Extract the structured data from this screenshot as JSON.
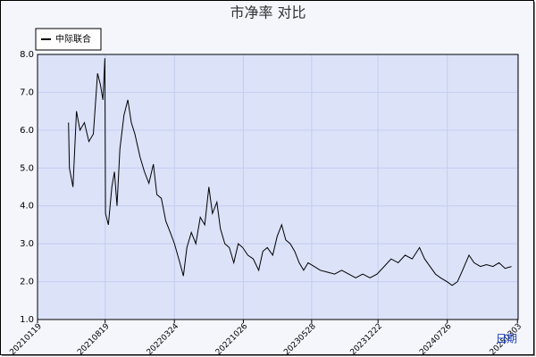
{
  "chart_data": {
    "type": "line",
    "title": "市净率  对比",
    "x_label": "日期",
    "x": [
      "20210426",
      "20210429",
      "20210510",
      "20210521",
      "20210601",
      "20210615",
      "20210629",
      "20210713",
      "20210726",
      "20210804",
      "20210812",
      "20210818",
      "20210820",
      "20210829",
      "20210909",
      "20210917",
      "20210925",
      "20211004",
      "20211017",
      "20211029",
      "20211109",
      "20211120",
      "20211206",
      "20211220",
      "20220103",
      "20220117",
      "20220128",
      "20220211",
      "20220225",
      "20220311",
      "20220324",
      "20220410",
      "20220421",
      "20220502",
      "20220516",
      "20220530",
      "20220613",
      "20220627",
      "20220710",
      "20220721",
      "20220804",
      "20220815",
      "20220829",
      "20220912",
      "20220926",
      "20221010",
      "20221024",
      "20221109",
      "20221126",
      "20221213",
      "20221226",
      "20230109",
      "20230126",
      "20230209",
      "20230223",
      "20230308",
      "20230322",
      "20230405",
      "20230419",
      "20230503",
      "20230517",
      "20230605",
      "20230624",
      "20230717",
      "20230808",
      "20230830",
      "20230921",
      "20231013",
      "20231104",
      "20231127",
      "20231219",
      "20240110",
      "20240201",
      "20240223",
      "20240316",
      "20240407",
      "20240430",
      "20240516",
      "20240602",
      "20240619",
      "20240705",
      "20240725",
      "20240810",
      "20240827",
      "20240912",
      "20241002",
      "20241018",
      "20241107",
      "20241126",
      "20241216",
      "20250104",
      "20250123",
      "20250212"
    ],
    "series": [
      {
        "name": "中际联合",
        "color": "#000000",
        "values": [
          6.2,
          5.0,
          4.5,
          6.5,
          6.0,
          6.2,
          5.7,
          5.9,
          7.5,
          7.2,
          6.8,
          7.9,
          3.8,
          3.5,
          4.5,
          4.9,
          4.0,
          5.5,
          6.4,
          6.8,
          6.2,
          5.9,
          5.3,
          4.9,
          4.6,
          5.1,
          4.3,
          4.2,
          3.6,
          3.3,
          3.0,
          2.5,
          2.15,
          2.9,
          3.3,
          3.0,
          3.7,
          3.5,
          4.5,
          3.8,
          4.1,
          3.4,
          3.0,
          2.9,
          2.5,
          3.0,
          2.9,
          2.7,
          2.6,
          2.3,
          2.8,
          2.9,
          2.7,
          3.2,
          3.5,
          3.1,
          3.0,
          2.8,
          2.5,
          2.3,
          2.5,
          2.4,
          2.3,
          2.25,
          2.2,
          2.3,
          2.2,
          2.1,
          2.2,
          2.1,
          2.2,
          2.4,
          2.6,
          2.5,
          2.7,
          2.6,
          2.9,
          2.6,
          2.4,
          2.2,
          2.1,
          2.0,
          1.9,
          2.0,
          2.3,
          2.7,
          2.5,
          2.4,
          2.45,
          2.4,
          2.5,
          2.35,
          2.4
        ]
      }
    ],
    "xlim": [
      "20210119",
      "20250305"
    ],
    "xticks": [
      "20210119",
      "20210819",
      "20220324",
      "20221026",
      "20230528",
      "20231222",
      "20240726",
      "20250303"
    ],
    "ylim": [
      1,
      8
    ],
    "yticks": [
      {
        "value": 1,
        "label": "1.0"
      },
      {
        "value": 2,
        "label": "2.0"
      },
      {
        "value": 3,
        "label": "3.0"
      },
      {
        "value": 4,
        "label": "4.0"
      },
      {
        "value": 5,
        "label": "5.0"
      },
      {
        "value": 6,
        "label": "6.0"
      },
      {
        "value": 7,
        "label": "7.0"
      },
      {
        "value": 8,
        "label": "8.0"
      }
    ],
    "grid": true,
    "legend": "top-left"
  }
}
